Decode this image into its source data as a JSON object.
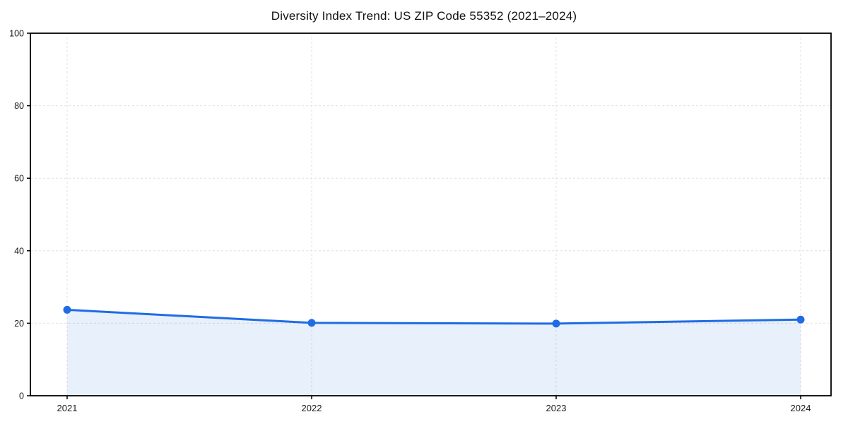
{
  "chart_data": {
    "type": "line",
    "title": "Diversity Index Trend: US ZIP Code 55352 (2021–2024)",
    "categories": [
      "2021",
      "2022",
      "2023",
      "2024"
    ],
    "series": [
      {
        "name": "Diversity Index",
        "values": [
          23.7,
          20.1,
          19.9,
          21.0
        ]
      }
    ],
    "xlabel": "",
    "ylabel": "",
    "ylim": [
      0,
      100
    ],
    "y_ticks": [
      0,
      20,
      40,
      60,
      80,
      100
    ],
    "grid": true,
    "grid_style": "dashed",
    "legend": false,
    "marker": "circle",
    "area_fill": true,
    "colors": {
      "line": "#1f6ce4",
      "marker": "#1f6ce4",
      "fill": "#1f6ce4",
      "fill_opacity": 0.1,
      "grid": "#e0e0e0",
      "axis": "#000000",
      "tick_label": "#1a1a1a",
      "background": "#ffffff"
    }
  }
}
